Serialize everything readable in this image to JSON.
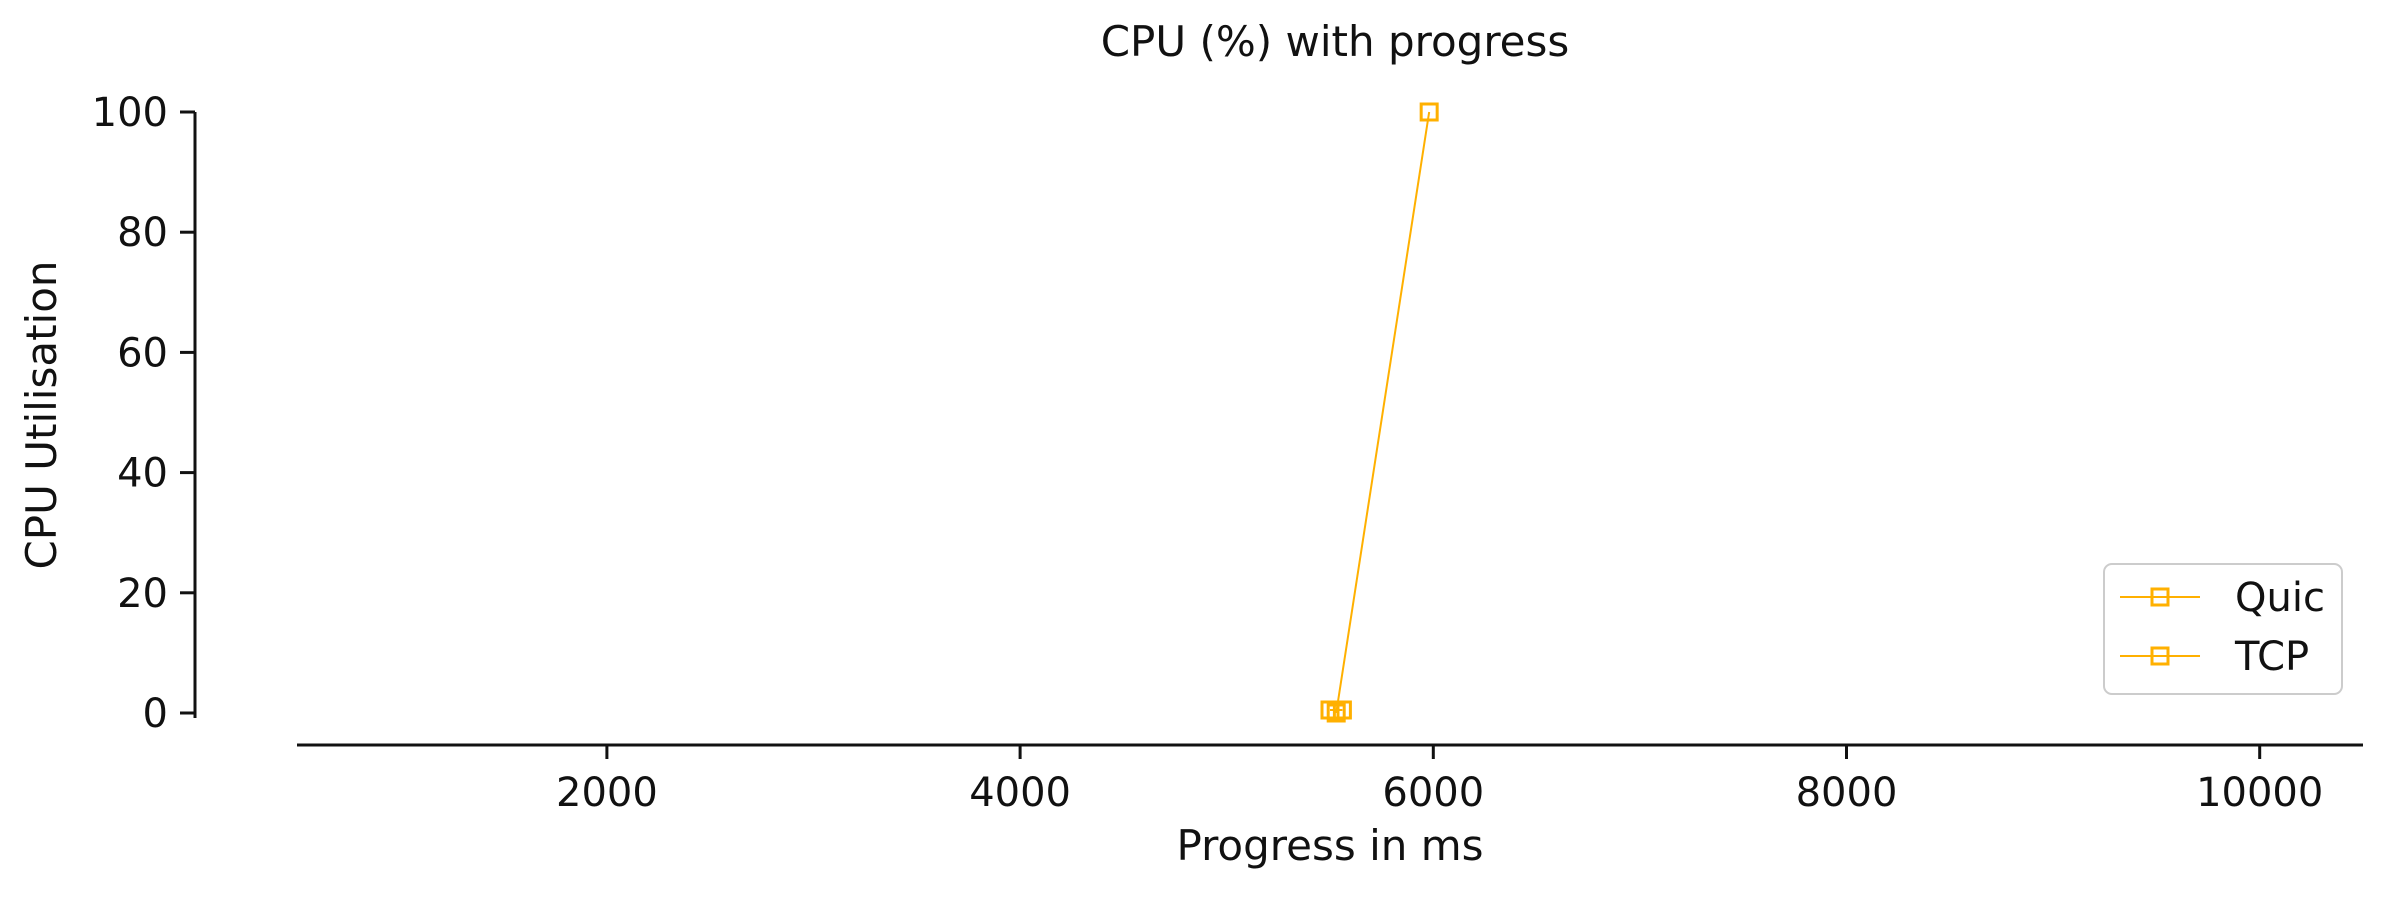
{
  "chart_data": {
    "type": "line",
    "title": "CPU (%) with progress",
    "xlabel": "Progress in ms",
    "ylabel": "CPU Utilisation",
    "xlim": [
      500,
      10500
    ],
    "ylim": [
      0,
      100
    ],
    "xticks": [
      2000,
      4000,
      6000,
      8000,
      10000
    ],
    "yticks": [
      0,
      20,
      40,
      60,
      80,
      100
    ],
    "grid": false,
    "legend_position": "lower-right",
    "series": [
      {
        "name": "Quic",
        "color": "#FFB000",
        "marker": "square",
        "points": [
          [
            5530,
            0
          ],
          [
            5980,
            100
          ]
        ]
      },
      {
        "name": "TCP",
        "color": "#FFB000",
        "marker": "square",
        "points": [
          [
            5500,
            0.5
          ],
          [
            5560,
            0.5
          ]
        ]
      }
    ]
  }
}
